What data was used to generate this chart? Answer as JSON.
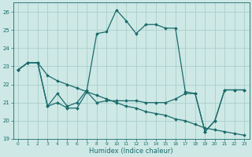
{
  "xlabel": "Humidex (Indice chaleur)",
  "ylabel": "",
  "xlim": [
    -0.5,
    23.5
  ],
  "ylim": [
    19,
    26.5
  ],
  "yticks": [
    19,
    20,
    21,
    22,
    23,
    24,
    25,
    26
  ],
  "xticks": [
    0,
    1,
    2,
    3,
    4,
    5,
    6,
    7,
    8,
    9,
    10,
    11,
    12,
    13,
    14,
    15,
    16,
    17,
    18,
    19,
    20,
    21,
    22,
    23
  ],
  "background_color": "#cde8e5",
  "line_color": "#1a6b6b",
  "grid_color": "#aacfcc",
  "line1_x": [
    0,
    1,
    2,
    3,
    4,
    5,
    6,
    7,
    8,
    9,
    10,
    11,
    12,
    13,
    14,
    15,
    16,
    17,
    18,
    19,
    20,
    21,
    22,
    23
  ],
  "line1_y": [
    22.8,
    23.2,
    23.2,
    22.5,
    22.2,
    22.0,
    21.8,
    21.6,
    21.4,
    21.2,
    21.0,
    20.8,
    20.7,
    20.5,
    20.4,
    20.3,
    20.1,
    20.0,
    19.8,
    19.6,
    19.5,
    19.4,
    19.3,
    19.2
  ],
  "line2_x": [
    0,
    1,
    2,
    3,
    4,
    5,
    6,
    7,
    8,
    9,
    10,
    11,
    12,
    13,
    14,
    15,
    16,
    17,
    18,
    19,
    20,
    21,
    22,
    23
  ],
  "line2_y": [
    22.8,
    23.2,
    23.2,
    20.8,
    21.5,
    20.8,
    21.0,
    21.7,
    24.8,
    24.9,
    26.1,
    25.5,
    24.8,
    25.3,
    25.3,
    25.1,
    25.1,
    21.6,
    21.5,
    19.4,
    20.0,
    21.7,
    21.7,
    21.7
  ],
  "line3_x": [
    0,
    1,
    2,
    3,
    4,
    5,
    6,
    7,
    8,
    9,
    10,
    11,
    12,
    13,
    14,
    15,
    16,
    17,
    18,
    19,
    20,
    21,
    22,
    23
  ],
  "line3_y": [
    22.8,
    23.2,
    23.2,
    20.8,
    21.0,
    20.7,
    20.7,
    21.6,
    21.0,
    21.1,
    21.1,
    21.1,
    21.1,
    21.0,
    21.0,
    21.0,
    21.2,
    21.5,
    21.5,
    19.4,
    20.0,
    21.7,
    21.7,
    21.7
  ]
}
